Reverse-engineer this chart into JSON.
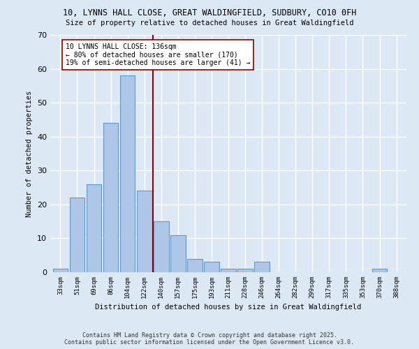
{
  "title1": "10, LYNNS HALL CLOSE, GREAT WALDINGFIELD, SUDBURY, CO10 0FH",
  "title2": "Size of property relative to detached houses in Great Waldingfield",
  "xlabel": "Distribution of detached houses by size in Great Waldingfield",
  "ylabel": "Number of detached properties",
  "bar_labels": [
    "33sqm",
    "51sqm",
    "69sqm",
    "86sqm",
    "104sqm",
    "122sqm",
    "140sqm",
    "157sqm",
    "175sqm",
    "193sqm",
    "211sqm",
    "228sqm",
    "246sqm",
    "264sqm",
    "282sqm",
    "299sqm",
    "317sqm",
    "335sqm",
    "353sqm",
    "370sqm",
    "388sqm"
  ],
  "bar_values": [
    1,
    22,
    26,
    44,
    58,
    24,
    15,
    11,
    4,
    3,
    1,
    1,
    3,
    0,
    0,
    0,
    0,
    0,
    0,
    1,
    0
  ],
  "bar_color": "#aec6e8",
  "bar_edge_color": "#5b9bd5",
  "ylim": [
    0,
    70
  ],
  "yticks": [
    0,
    10,
    20,
    30,
    40,
    50,
    60,
    70
  ],
  "vline_x": 5.5,
  "vline_color": "#8b0000",
  "annotation_text": "10 LYNNS HALL CLOSE: 136sqm\n← 80% of detached houses are smaller (170)\n19% of semi-detached houses are larger (41) →",
  "annotation_box_color": "#ffffff",
  "annotation_box_edge_color": "#8b0000",
  "background_color": "#dce9f5",
  "plot_bg_color": "#dce9f5",
  "grid_color": "#ffffff",
  "footer_line1": "Contains HM Land Registry data © Crown copyright and database right 2025.",
  "footer_line2": "Contains public sector information licensed under the Open Government Licence v3.0."
}
